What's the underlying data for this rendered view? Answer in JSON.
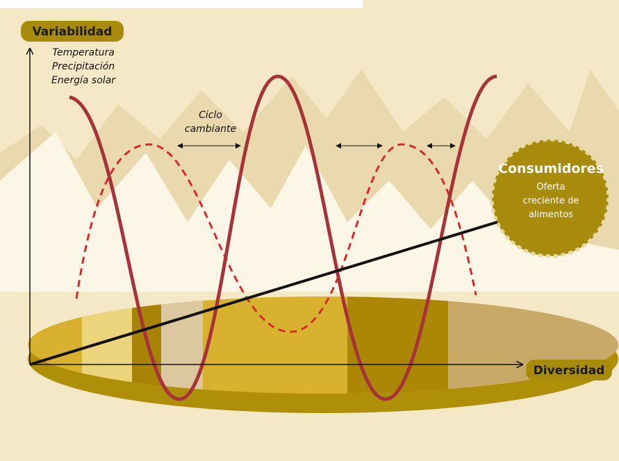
{
  "y_axis_label": "Variabilidad",
  "x_axis_label": "Diversidad",
  "variability_items": [
    "Temperatura",
    "Precipitación",
    "Energía solar"
  ],
  "cycle_label": [
    "Ciclo",
    "cambiante"
  ],
  "consumers": {
    "title": "Consumidores",
    "lines": [
      "Oferta",
      "creciente de",
      "alimentos"
    ]
  }
}
